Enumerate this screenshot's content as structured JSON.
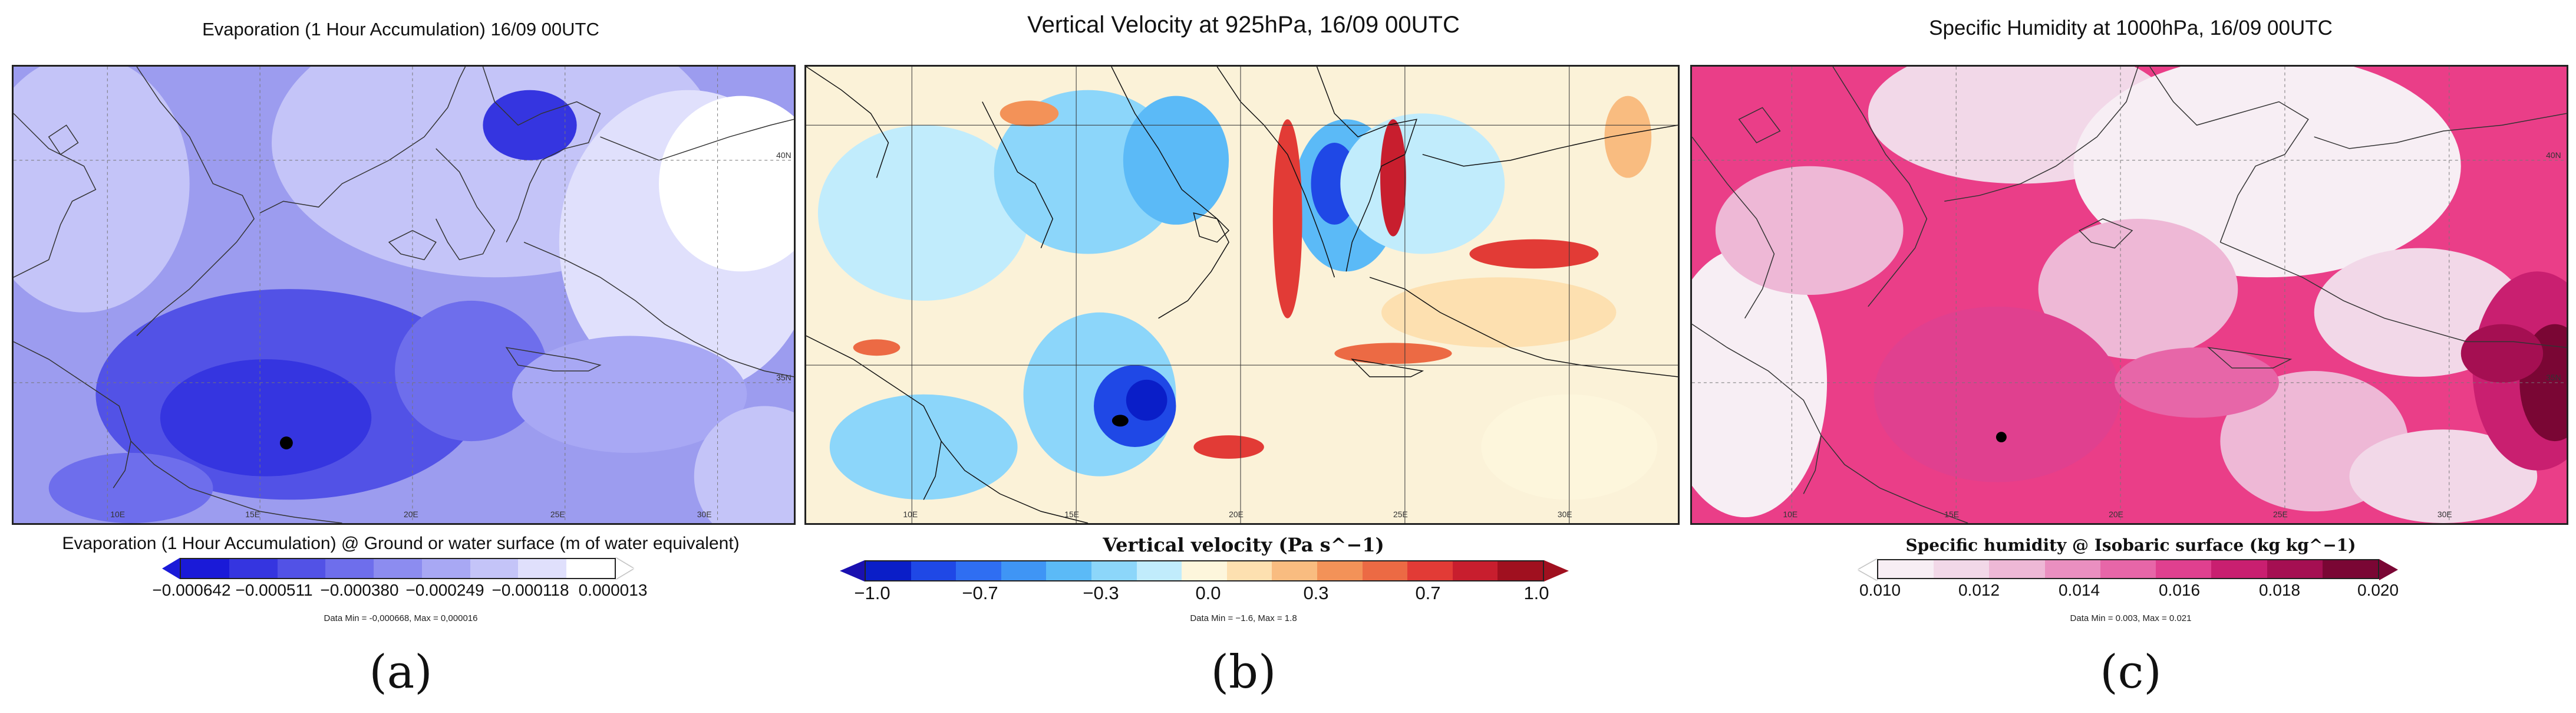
{
  "panels": [
    {
      "title": "Evaporation (1 Hour Accumulation) 16/09 00UTC",
      "colorbar_title": "Evaporation (1 Hour Accumulation) @ Ground or water surface (m of water equivalent)",
      "ticks": [
        "−0.000642",
        "−0.000511",
        "−0.000380",
        "−0.000249",
        "−0.000118",
        "0.000013"
      ],
      "data_minmax": "Data Min = -0,000668, Max = 0,000016",
      "sublabel": "(a)",
      "lon_labels": [
        "10E",
        "15E",
        "20E",
        "25E",
        "30E"
      ],
      "lat_labels": [
        "40N",
        "35N"
      ],
      "colors": [
        "#1a1ad8",
        "#3535e0",
        "#5252e6",
        "#6e6eec",
        "#8c8cf0",
        "#a8a8f4",
        "#c4c4f8",
        "#e0e0fc",
        "#ffffff"
      ],
      "arrow_left": "#1a1ad8",
      "arrow_right": "#ffffff",
      "map_bg": "#9c9cef"
    },
    {
      "title": "Vertical Velocity at 925hPa, 16/09 00UTC",
      "colorbar_title": "Vertical velocity (Pa s^−1)",
      "ticks": [
        "−1.0",
        "−0.7",
        "−0.3",
        "0.0",
        "0.3",
        "0.7",
        "1.0"
      ],
      "data_minmax": "Data Min = −1.6, Max = 1.8",
      "sublabel": "(b)",
      "lon_labels": [
        "10E",
        "15E",
        "20E",
        "25E",
        "30E"
      ],
      "lat_labels": [],
      "colors": [
        "#0a1ec8",
        "#1f48e6",
        "#2f6ef2",
        "#3f95f5",
        "#5bbaf7",
        "#8cd6fa",
        "#c1ecfc",
        "#fdf6dc",
        "#fde0b0",
        "#f9bc80",
        "#f39258",
        "#ec6a44",
        "#e23b36",
        "#c81e2e",
        "#a0101f"
      ],
      "arrow_left": "#1a10b0",
      "arrow_right": "#a0101f",
      "map_bg": "#fbf2d8"
    },
    {
      "title": "Specific Humidity at 1000hPa, 16/09 00UTC",
      "colorbar_title": "Specific humidity @ Isobaric surface (kg kg^−1)",
      "ticks": [
        "0.010",
        "0.012",
        "0.014",
        "0.016",
        "0.018",
        "0.020"
      ],
      "data_minmax": "Data Min = 0.003, Max = 0.021",
      "sublabel": "(c)",
      "lon_labels": [
        "10E",
        "15E",
        "20E",
        "25E",
        "30E"
      ],
      "lat_labels": [
        "40N",
        "35N"
      ],
      "colors": [
        "#f7eef4",
        "#f2d8e8",
        "#eeb8d6",
        "#ea8fc0",
        "#e766a8",
        "#e0408f",
        "#c91f70",
        "#a50f52",
        "#7a0634"
      ],
      "arrow_left": "#ffffff",
      "arrow_right": "#7a0634",
      "map_bg": "#ea3e88"
    }
  ]
}
